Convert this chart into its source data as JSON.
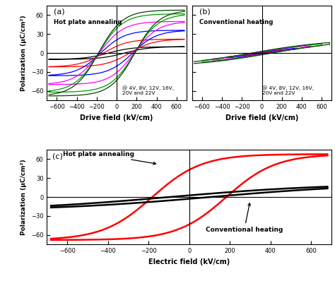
{
  "panel_a_label": "(a)",
  "panel_b_label": "(b)",
  "panel_c_label": "(c)",
  "panel_a_title": "Hot plate annealing",
  "panel_b_title": "Conventional heating",
  "panel_c_label_hot": "Hot plate annealing",
  "panel_c_label_conv": "Conventional heating",
  "voltage_annotation": "@ 4V, 8V, 12V, 16V,\n20V and 22V",
  "xlabel_ab": "Drive field (kV/cm)",
  "xlabel_c": "Electric field (kV/cm)",
  "ylabel_ac": "Polarization (μC/cm²)",
  "ylim_ab": [
    -75,
    75
  ],
  "xlim_ab": [
    -700,
    700
  ],
  "ylim_c": [
    -75,
    75
  ],
  "xlim_c": [
    -700,
    700
  ],
  "xticks_ab": [
    -600,
    -400,
    -200,
    0,
    200,
    400,
    600
  ],
  "yticks_ab": [
    -60,
    -30,
    0,
    30,
    60
  ],
  "xticks_c": [
    -600,
    -400,
    -200,
    0,
    200,
    400,
    600
  ],
  "yticks_c": [
    -60,
    -30,
    0,
    30,
    60
  ],
  "colors_a": [
    "black",
    "red",
    "blue",
    "magenta",
    "#009900",
    "#004400"
  ],
  "colors_b": [
    "black",
    "red",
    "blue",
    "magenta",
    "#009900",
    "#004400"
  ],
  "loop_color_hot": "red",
  "loop_color_conv": "black",
  "Pmax_a": 68,
  "Emax_a": 680,
  "Pmax_b_loops": [
    3,
    6,
    10,
    15,
    19,
    22
  ],
  "Emax_b_loops": [
    120,
    220,
    350,
    490,
    600,
    680
  ],
  "Ec_b_loops": [
    20,
    35,
    55,
    75,
    90,
    100
  ],
  "Pmax_a_loops": [
    10,
    22,
    36,
    50,
    62,
    68
  ],
  "Ec_a_loops": [
    80,
    130,
    160,
    175,
    180,
    182
  ],
  "Emax": 680,
  "Pmax_c_hot": 68,
  "Ec_c_hot": 182,
  "Pmax_c_conv": 22,
  "Emax_c_conv": 680,
  "Ec_c_conv": 100
}
